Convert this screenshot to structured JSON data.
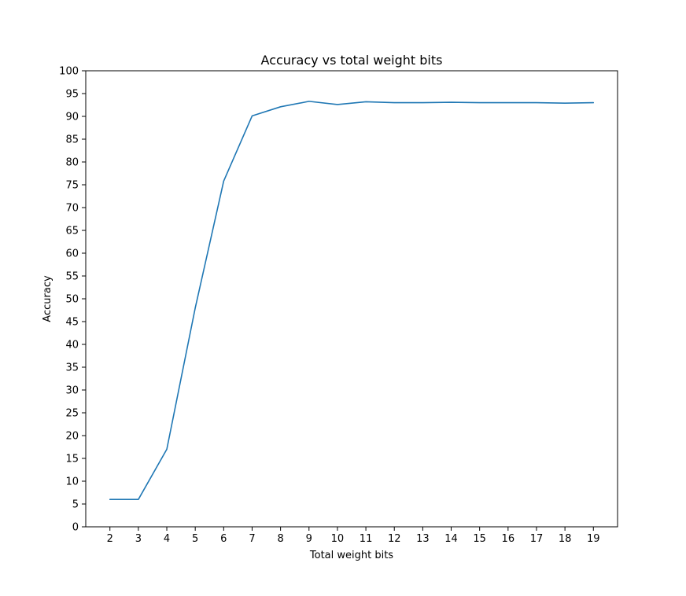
{
  "chart_data": {
    "type": "line",
    "title": "Accuracy vs total weight bits",
    "xlabel": "Total weight bits",
    "ylabel": "Accuracy",
    "x": [
      2,
      3,
      4,
      5,
      6,
      7,
      8,
      9,
      10,
      11,
      12,
      13,
      14,
      15,
      16,
      17,
      18,
      19
    ],
    "x_ticks": [
      2,
      3,
      4,
      5,
      6,
      7,
      8,
      9,
      10,
      11,
      12,
      13,
      14,
      15,
      16,
      17,
      18,
      19
    ],
    "xlim": [
      1.15,
      19.85
    ],
    "ylim": [
      0,
      100
    ],
    "y_ticks": [
      0,
      5,
      10,
      15,
      20,
      25,
      30,
      35,
      40,
      45,
      50,
      55,
      60,
      65,
      70,
      75,
      80,
      85,
      90,
      95,
      100
    ],
    "grid": false,
    "series": [
      {
        "values": [
          6.0,
          6.0,
          17.0,
          48.0,
          75.8,
          90.1,
          92.1,
          93.3,
          92.6,
          93.2,
          93.0,
          93.0,
          93.1,
          93.0,
          93.0,
          93.0,
          92.9,
          93.0
        ],
        "color": "#1f77b4"
      }
    ]
  }
}
